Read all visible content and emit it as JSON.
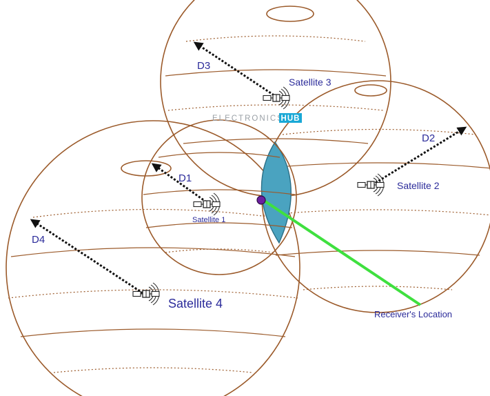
{
  "colors": {
    "sphere_stroke": "#9b5a2a",
    "label_text": "#2b2b9a",
    "distance_arrow": "#111111",
    "intersection_fill": "#4aa3c0",
    "receiver_marker": "#6b1fa0",
    "receiver_line": "#3fe03f",
    "watermark_text": "#9aa0a6",
    "watermark_box": "#19a8d6"
  },
  "icons": [
    "satellite-icon"
  ],
  "watermark": {
    "left": "ELECTRONICS",
    "right": "HUB"
  },
  "satellites": [
    {
      "name": "Satellite 1",
      "distance": "D1"
    },
    {
      "name": "Satellite 2",
      "distance": "D2"
    },
    {
      "name": "Satellite 3",
      "distance": "D3"
    },
    {
      "name": "Satellite 4",
      "distance": "D4"
    }
  ],
  "receiver": {
    "label": "Receiver's Location"
  }
}
